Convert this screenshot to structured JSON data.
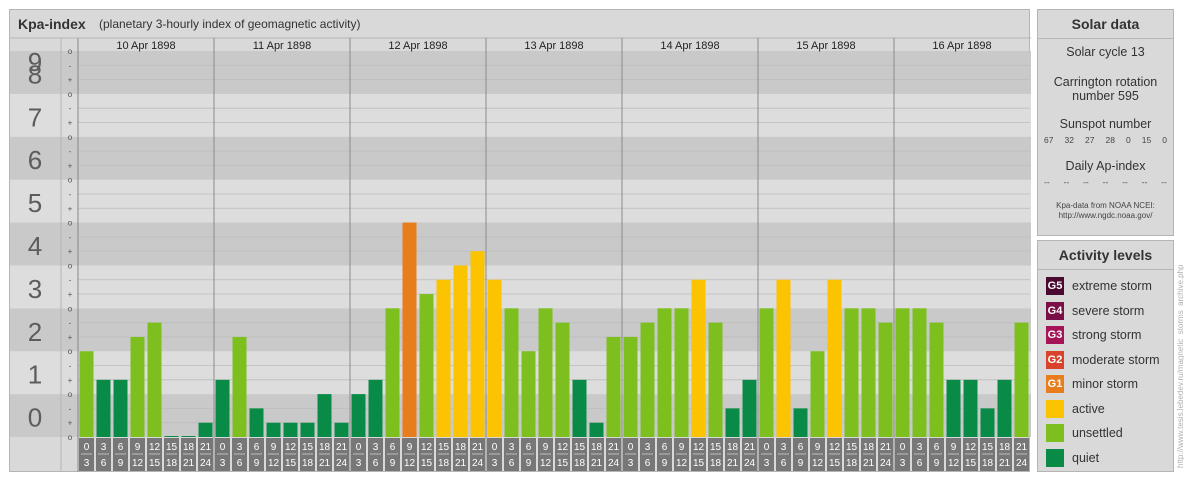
{
  "colors": {
    "quiet": "#0a8a47",
    "unsettled": "#7cbf1f",
    "active": "#fcc400",
    "minor_storm": "#e87d1e",
    "moderate_storm": "#d9432b",
    "strong_storm": "#a51456",
    "severe_storm": "#7a0f47",
    "extreme_storm": "#4a0a30",
    "band_dark": "#c9c9c9",
    "band_light": "#dddddd",
    "tick_box": "#777777"
  },
  "header": {
    "title": "Kpa-index",
    "subtitle": "(planetary 3-hourly index of geomagnetic activity)"
  },
  "chart_data": {
    "type": "bar",
    "title": "Kpa-index",
    "subtitle": "(planetary 3-hourly index of geomagnetic activity)",
    "ylim": [
      0,
      9
    ],
    "y_ticks": [
      "0",
      "1",
      "2",
      "3",
      "4",
      "5",
      "6",
      "7",
      "8",
      "9"
    ],
    "y_minor_labels": [
      "o",
      "+",
      "-"
    ],
    "days": [
      "10 Apr 1898",
      "11 Apr 1898",
      "12 Apr 1898",
      "13 Apr 1898",
      "14 Apr 1898",
      "15 Apr 1898",
      "16 Apr 1898"
    ],
    "hour_start": [
      "0",
      "3",
      "6",
      "9",
      "12",
      "15",
      "18",
      "21"
    ],
    "hour_end": [
      "3",
      "6",
      "9",
      "12",
      "15",
      "18",
      "21",
      "24"
    ],
    "values": [
      2.0,
      1.333,
      1.333,
      2.333,
      2.667,
      0.0,
      0.0,
      0.333,
      1.333,
      2.333,
      0.667,
      0.333,
      0.333,
      0.333,
      1.0,
      0.333,
      1.0,
      1.333,
      3.0,
      5.0,
      3.333,
      3.667,
      4.0,
      4.333,
      3.667,
      3.0,
      2.0,
      3.0,
      2.667,
      1.333,
      0.333,
      2.333,
      2.333,
      2.667,
      3.0,
      3.0,
      3.667,
      2.667,
      0.667,
      1.333,
      3.0,
      3.667,
      0.667,
      2.0,
      3.667,
      3.0,
      3.0,
      2.667,
      3.0,
      3.0,
      2.667,
      1.333,
      1.333,
      0.667,
      1.333,
      2.667
    ],
    "grid": true
  },
  "solar": {
    "title": "Solar data",
    "cycle": "Solar cycle 13",
    "carrington_line1": "Carrington rotation",
    "carrington_line2": "number 595",
    "sunspot_label": "Sunspot number",
    "sunspot_values": [
      "67",
      "32",
      "27",
      "28",
      "0",
      "15",
      "0"
    ],
    "ap_label": "Daily Ap-index",
    "ap_values": [
      "--",
      "--",
      "--",
      "--",
      "--",
      "--",
      "--"
    ],
    "source_line1": "Kpa-data from NOAA NCEI:",
    "source_line2": "http://www.ngdc.noaa.gov/"
  },
  "activity": {
    "title": "Activity levels",
    "items": [
      {
        "code": "G5",
        "label": "extreme storm",
        "color": "#4a0a30"
      },
      {
        "code": "G4",
        "label": "severe storm",
        "color": "#7a0f47"
      },
      {
        "code": "G3",
        "label": "strong storm",
        "color": "#a51456"
      },
      {
        "code": "G2",
        "label": "moderate storm",
        "color": "#d9432b"
      },
      {
        "code": "G1",
        "label": "minor storm",
        "color": "#e87d1e"
      },
      {
        "code": "",
        "label": "active",
        "color": "#fcc400"
      },
      {
        "code": "",
        "label": "unsettled",
        "color": "#7cbf1f"
      },
      {
        "code": "",
        "label": "quiet",
        "color": "#0a8a47"
      }
    ]
  },
  "watermark": "http://www.tesis.lebedev.ru/magnetic_storms_archive.php"
}
